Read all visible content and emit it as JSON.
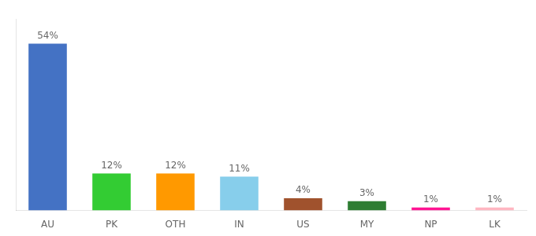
{
  "chart_data": {
    "type": "bar",
    "categories": [
      "AU",
      "PK",
      "OTH",
      "IN",
      "US",
      "MY",
      "NP",
      "LK"
    ],
    "values": [
      54,
      12,
      12,
      11,
      4,
      3,
      1,
      1
    ],
    "value_labels": [
      "54%",
      "12%",
      "12%",
      "11%",
      "4%",
      "3%",
      "1%",
      "1%"
    ],
    "colors": [
      "#4472C4",
      "#33CC33",
      "#FF9900",
      "#87CEEB",
      "#A0522D",
      "#2E7D32",
      "#FF1493",
      "#FFB6C1"
    ],
    "ylim": [
      0,
      62
    ],
    "grid": false,
    "data_labels": true,
    "tick_labels": "x"
  }
}
